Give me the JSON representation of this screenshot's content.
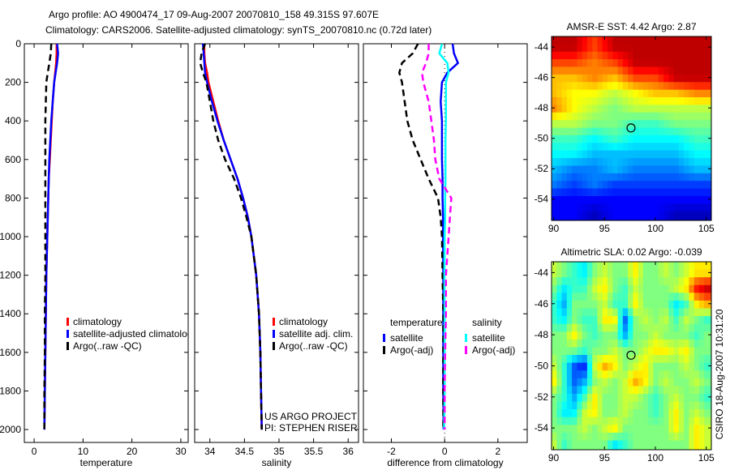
{
  "title_line1": "Argo profile: AO 4900474_17 09-Aug-2007 20070810_158 49.315S 97.607E",
  "title_line2": "Climatology: CARS2006. Satellite-adjusted climatology: synTS_20070810.nc (0.72d later)",
  "credit": "CSIRO 18-Aug-2007 10:31:20",
  "project_line1": "US ARGO PROJECT",
  "project_line2": "PI: STEPHEN RISER",
  "colors": {
    "red": "#ff0000",
    "blue": "#0000ff",
    "black": "#000000",
    "cyan": "#00ffff",
    "magenta": "#ff00ff"
  },
  "chart_data": [
    {
      "type": "line",
      "xlabel": "temperature",
      "ylabel": "",
      "xlim": [
        -2,
        31.5
      ],
      "ylim": [
        0,
        2067
      ],
      "xticks": [
        0,
        10,
        20,
        30
      ],
      "yticks": [
        0,
        200,
        400,
        600,
        800,
        1000,
        1200,
        1400,
        1600,
        1800,
        2000
      ],
      "depth": [
        0,
        50,
        100,
        150,
        200,
        300,
        400,
        500,
        600,
        700,
        800,
        900,
        1000,
        1200,
        1400,
        1600,
        1800,
        2000
      ],
      "series": [
        {
          "name": "climatology",
          "color": "#ff0000",
          "dash": false,
          "values": [
            4.6,
            4.6,
            4.5,
            4.3,
            4.1,
            3.8,
            3.6,
            3.4,
            3.2,
            3.0,
            2.9,
            2.8,
            2.7,
            2.5,
            2.4,
            2.3,
            2.2,
            2.1
          ]
        },
        {
          "name": "satellite-adjusted climatology",
          "color": "#0000ff",
          "dash": false,
          "values": [
            4.7,
            4.9,
            4.7,
            4.4,
            4.1,
            3.8,
            3.5,
            3.3,
            3.1,
            3.0,
            2.9,
            2.8,
            2.7,
            2.5,
            2.4,
            2.3,
            2.2,
            2.1
          ]
        },
        {
          "name": "Argo(..raw -QC)",
          "color": "#000000",
          "dash": true,
          "values": [
            3.5,
            3.4,
            3.1,
            2.8,
            2.5,
            2.4,
            2.3,
            2.3,
            2.3,
            2.3,
            2.3,
            2.3,
            2.3,
            2.3,
            2.2,
            2.2,
            2.1,
            2.1
          ]
        }
      ],
      "legend": [
        "climatology",
        "satellite-adjusted climatology",
        "Argo(..raw -QC)"
      ]
    },
    {
      "type": "line",
      "xlabel": "salinity",
      "xlim": [
        33.78,
        36.15
      ],
      "ylim": [
        0,
        2067
      ],
      "xticks": [
        34,
        34.5,
        35,
        35.5,
        36
      ],
      "depth": [
        0,
        50,
        100,
        150,
        200,
        300,
        400,
        500,
        600,
        700,
        800,
        900,
        1000,
        1200,
        1400,
        1600,
        1800,
        2000
      ],
      "series": [
        {
          "name": "climatology",
          "color": "#ff0000",
          "dash": false,
          "values": [
            33.92,
            33.92,
            33.93,
            33.96,
            33.98,
            34.05,
            34.12,
            34.2,
            34.3,
            34.4,
            34.48,
            34.55,
            34.6,
            34.67,
            34.71,
            34.73,
            34.74,
            34.75
          ]
        },
        {
          "name": "satellite adj. clim.",
          "color": "#0000ff",
          "dash": false,
          "values": [
            33.9,
            33.91,
            33.92,
            33.93,
            33.96,
            34.03,
            34.11,
            34.2,
            34.3,
            34.4,
            34.48,
            34.55,
            34.6,
            34.67,
            34.71,
            34.73,
            34.74,
            34.75
          ]
        },
        {
          "name": "Argo(..raw -QC)",
          "color": "#000000",
          "dash": true,
          "values": [
            33.93,
            33.88,
            33.86,
            33.9,
            33.95,
            34.0,
            34.05,
            34.12,
            34.22,
            34.35,
            34.45,
            34.53,
            34.6,
            34.67,
            34.71,
            34.73,
            34.74,
            34.75
          ]
        }
      ],
      "legend": [
        "climatology",
        "satellite adj. clim.",
        "Argo(..raw -QC)"
      ]
    },
    {
      "type": "line",
      "xlabel": "difference from climatology",
      "xlim": [
        -3.05,
        3.1
      ],
      "ylim": [
        0,
        2067
      ],
      "xticks": [
        -2,
        0,
        2
      ],
      "depth": [
        0,
        50,
        100,
        150,
        200,
        300,
        400,
        500,
        600,
        700,
        800,
        900,
        1000,
        1200,
        1400,
        1600,
        1800,
        2000
      ],
      "series": [
        {
          "name": "temperature satellite",
          "color": "#0000ff",
          "dash": false,
          "values": [
            0.3,
            0.35,
            0.5,
            0.1,
            -0.1,
            -0.15,
            -0.1,
            -0.1,
            -0.1,
            -0.08,
            -0.08,
            -0.06,
            -0.06,
            -0.05,
            -0.05,
            -0.05,
            -0.05,
            -0.04
          ]
        },
        {
          "name": "temperature Argo(-adj)",
          "color": "#000000",
          "dash": true,
          "values": [
            -1.0,
            -1.2,
            -1.6,
            -1.7,
            -1.6,
            -1.5,
            -1.4,
            -1.2,
            -0.9,
            -0.6,
            -0.25,
            -0.15,
            -0.1,
            -0.08,
            -0.05,
            -0.05,
            -0.05,
            -0.05
          ]
        },
        {
          "name": "salinity satellite",
          "color": "#00ffff",
          "dash": false,
          "values": [
            -0.1,
            -0.2,
            0.1,
            0.15,
            0.05,
            0.05,
            0.05,
            0.03,
            0.03,
            0.03,
            0.02,
            0.02,
            0.0,
            -0.01,
            0,
            0,
            0,
            -0.02
          ]
        },
        {
          "name": "salinity Argo(-adj)",
          "color": "#ff00ff",
          "dash": true,
          "values": [
            -0.6,
            -0.6,
            -0.7,
            -0.85,
            -0.8,
            -0.6,
            -0.5,
            -0.4,
            -0.35,
            -0.2,
            0.25,
            0.2,
            0.15,
            0.05,
            0.05,
            0.02,
            0.0,
            0.0
          ]
        }
      ],
      "legend_headers": [
        "temperature",
        "salinity"
      ],
      "legend": [
        "satellite",
        "Argo(-adj)",
        "satellite",
        "Argo(-adj)"
      ]
    },
    {
      "type": "heatmap",
      "title": "AMSR-E SST: 4.42 Argo: 2.87",
      "xlim": [
        89.8,
        105.5
      ],
      "ylim": [
        -55.4,
        -43.3
      ],
      "xticks": [
        90,
        95,
        100,
        105
      ],
      "yticks": [
        -44,
        -46,
        -48,
        -50,
        -52,
        -54
      ],
      "grid_lon": [
        90,
        92,
        94,
        96,
        98,
        100,
        102,
        104
      ],
      "grid_lat": [
        -44,
        -45,
        -46,
        -47,
        -48,
        -49,
        -50,
        -51,
        -52,
        -53,
        -54,
        -55
      ],
      "crange": [
        0.5,
        8.5
      ],
      "values": [
        [
          8,
          8,
          7,
          8,
          8,
          8,
          8,
          8
        ],
        [
          7,
          7,
          6.5,
          7,
          8,
          8,
          8,
          8
        ],
        [
          6,
          6,
          6.5,
          6,
          7,
          7,
          8,
          8
        ],
        [
          6,
          5.5,
          5.5,
          5,
          5.5,
          6,
          6,
          6.5
        ],
        [
          6.5,
          5.5,
          5,
          4.5,
          5,
          5,
          5,
          5
        ],
        [
          5,
          5,
          4.5,
          4.5,
          4,
          4,
          4.5,
          4.5
        ],
        [
          4,
          4,
          3.5,
          4,
          3.5,
          3.5,
          3.5,
          4
        ],
        [
          3.5,
          3.5,
          3,
          3,
          3,
          3,
          3,
          3.5
        ],
        [
          3,
          2.5,
          2.5,
          3,
          2.5,
          2.5,
          2.5,
          3
        ],
        [
          2.5,
          2,
          2.5,
          2,
          2,
          2,
          2,
          2
        ],
        [
          1.5,
          1.5,
          1.5,
          1.5,
          1.5,
          1.5,
          1.5,
          1.5
        ],
        [
          1.5,
          1.5,
          1,
          1.5,
          1.5,
          1.5,
          1,
          1
        ]
      ],
      "marker": {
        "lon": 97.607,
        "lat": -49.315
      }
    },
    {
      "type": "heatmap",
      "title": "Altimetric SLA: 0.02 Argo: -0.039",
      "xlim": [
        89.8,
        105.5
      ],
      "ylim": [
        -55.4,
        -43.3
      ],
      "xticks": [
        90,
        95,
        100,
        105
      ],
      "yticks": [
        -44,
        -46,
        -48,
        -50,
        -52,
        -54
      ],
      "grid_lon": [
        90,
        91,
        92,
        93,
        94,
        95,
        96,
        97,
        98,
        99,
        100,
        101,
        102,
        103,
        104,
        105
      ],
      "grid_lat": [
        -44,
        -45,
        -46,
        -47,
        -48,
        -49,
        -50,
        -51,
        -52,
        -53,
        -54,
        -55
      ],
      "crange": [
        -0.35,
        0.35
      ],
      "values": [
        [
          0.05,
          0,
          -0.05,
          -0.1,
          0,
          0.05,
          0,
          0,
          0.1,
          0,
          0,
          0.05,
          0,
          0.05,
          0.1,
          0.1
        ],
        [
          0,
          -0.1,
          -0.05,
          -0.05,
          0.05,
          0.1,
          0,
          -0.05,
          0.05,
          0,
          0,
          0,
          0.05,
          0.1,
          0.25,
          0.3
        ],
        [
          -0.05,
          -0.15,
          0,
          0,
          0,
          0.05,
          -0.05,
          -0.05,
          0.1,
          0,
          0,
          0,
          -0.1,
          -0.05,
          0.1,
          0.15
        ],
        [
          -0.05,
          -0.1,
          0,
          -0.05,
          -0.05,
          0.1,
          0.1,
          -0.2,
          0,
          0.05,
          0,
          0.05,
          -0.05,
          0.05,
          0,
          -0.05
        ],
        [
          0,
          0,
          0.1,
          0,
          -0.05,
          0,
          0,
          -0.15,
          0,
          0,
          0.05,
          0,
          0,
          0,
          -0.05,
          0
        ],
        [
          0,
          0,
          0,
          -0.05,
          0,
          0,
          0.05,
          0,
          0,
          0.05,
          0.1,
          0.1,
          0.05,
          0.1,
          0,
          0
        ],
        [
          0.05,
          -0.05,
          -0.2,
          -0.25,
          0.05,
          0.15,
          0.1,
          0,
          0.05,
          0.1,
          0,
          0,
          0,
          0.05,
          0,
          -0.05
        ],
        [
          0.1,
          -0.05,
          -0.2,
          -0.15,
          0,
          0.05,
          0,
          0.05,
          0.15,
          0.1,
          0,
          0.05,
          0,
          0,
          0.05,
          0
        ],
        [
          0,
          -0.05,
          -0.15,
          -0.05,
          0.1,
          0,
          0,
          0.05,
          0.05,
          0,
          -0.05,
          0,
          0.05,
          0,
          0,
          -0.05
        ],
        [
          0,
          -0.1,
          -0.1,
          0.05,
          0.1,
          0,
          0,
          0.05,
          0,
          0,
          -0.05,
          0,
          0.1,
          0,
          0.05,
          0
        ],
        [
          0,
          0,
          0,
          0.05,
          0,
          0.05,
          0.1,
          0,
          0,
          0,
          0,
          0,
          0.1,
          0,
          0.1,
          0.05
        ],
        [
          0.05,
          -0.05,
          0,
          0,
          0,
          0,
          -0.1,
          -0.05,
          0,
          0,
          0,
          0,
          0,
          0,
          0.1,
          0.05
        ]
      ],
      "marker": {
        "lon": 97.607,
        "lat": -49.315
      }
    }
  ]
}
